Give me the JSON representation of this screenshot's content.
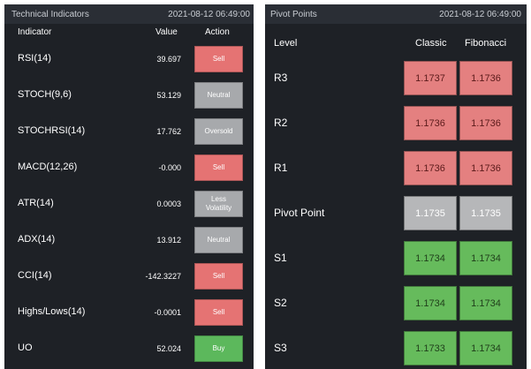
{
  "technical": {
    "title": "Technical Indicators",
    "timestamp": "2021-08-12 06:49:00",
    "headers": {
      "indicator": "Indicator",
      "value": "Value",
      "action": "Action"
    },
    "rows": [
      {
        "name": "RSI(14)",
        "value": "39.697",
        "action": "Sell",
        "kind": "sell"
      },
      {
        "name": "STOCH(9,6)",
        "value": "53.129",
        "action": "Neutral",
        "kind": "neutral"
      },
      {
        "name": "STOCHRSI(14)",
        "value": "17.762",
        "action": "Oversold",
        "kind": "oversold"
      },
      {
        "name": "MACD(12,26)",
        "value": "-0.000",
        "action": "Sell",
        "kind": "sell"
      },
      {
        "name": "ATR(14)",
        "value": "0.0003",
        "action": "Less Volatility",
        "kind": "less-vol"
      },
      {
        "name": "ADX(14)",
        "value": "13.912",
        "action": "Neutral",
        "kind": "neutral"
      },
      {
        "name": "CCI(14)",
        "value": "-142.3227",
        "action": "Sell",
        "kind": "sell"
      },
      {
        "name": "Highs/Lows(14)",
        "value": "-0.0001",
        "action": "Sell",
        "kind": "sell"
      },
      {
        "name": "UO",
        "value": "52.024",
        "action": "Buy",
        "kind": "buy"
      }
    ]
  },
  "pivot": {
    "title": "Pivot Points",
    "timestamp": "2021-08-12 06:49:00",
    "headers": {
      "level": "Level",
      "classic": "Classic",
      "fibonacci": "Fibonacci"
    },
    "rows": [
      {
        "level": "R3",
        "classic": "1.1737",
        "fibonacci": "1.1736",
        "kind": "red"
      },
      {
        "level": "R2",
        "classic": "1.1736",
        "fibonacci": "1.1736",
        "kind": "red"
      },
      {
        "level": "R1",
        "classic": "1.1736",
        "fibonacci": "1.1736",
        "kind": "red"
      },
      {
        "level": "Pivot Point",
        "classic": "1.1735",
        "fibonacci": "1.1735",
        "kind": "gray"
      },
      {
        "level": "S1",
        "classic": "1.1734",
        "fibonacci": "1.1734",
        "kind": "green"
      },
      {
        "level": "S2",
        "classic": "1.1734",
        "fibonacci": "1.1734",
        "kind": "green"
      },
      {
        "level": "S3",
        "classic": "1.1733",
        "fibonacci": "1.1734",
        "kind": "green"
      }
    ]
  },
  "colors": {
    "panel_bg": "#1e2126",
    "header_bg": "#2a2e35",
    "sell": "#e57373",
    "neutral": "#a7a9ac",
    "buy": "#5cb85c"
  }
}
